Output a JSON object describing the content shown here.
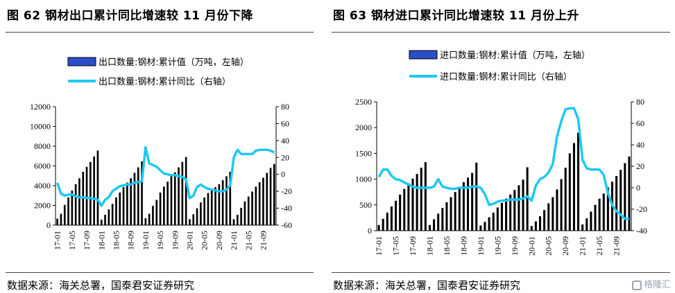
{
  "figures": [
    {
      "title": "图 62  钢材出口累计同比增速较 11 月份下降",
      "source": "数据来源：海关总署，国泰君安证券研究"
    },
    {
      "title": "图 63  钢材进口累计同比增速较 11 月份上升",
      "source": "数据来源：海关总署，国泰君安证券研究"
    }
  ],
  "watermark": "格隆汇",
  "colors": {
    "bar": "#000000",
    "line": "#1EC8F0",
    "legend_bar_fill": "#2B4EC8"
  },
  "chart_data": [
    {
      "type": "bar",
      "categories": [
        "17-01",
        "17-02",
        "17-03",
        "17-04",
        "17-05",
        "17-06",
        "17-07",
        "17-08",
        "17-09",
        "17-10",
        "17-11",
        "17-12",
        "18-01",
        "18-02",
        "18-03",
        "18-04",
        "18-05",
        "18-06",
        "18-07",
        "18-08",
        "18-09",
        "18-10",
        "18-11",
        "18-12",
        "19-01",
        "19-02",
        "19-03",
        "19-04",
        "19-05",
        "19-06",
        "19-07",
        "19-08",
        "19-09",
        "19-10",
        "19-11",
        "19-12",
        "20-01",
        "20-02",
        "20-03",
        "20-04",
        "20-05",
        "20-06",
        "20-07",
        "20-08",
        "20-09",
        "20-10",
        "20-11",
        "20-12",
        "21-01",
        "21-02",
        "21-03",
        "21-04",
        "21-05",
        "21-06",
        "21-07",
        "21-08",
        "21-09",
        "21-10",
        "21-11",
        "21-12"
      ],
      "x_tick_labels": [
        "17-01",
        "17-05",
        "17-09",
        "18-01",
        "18-05",
        "18-09",
        "19-01",
        "19-05",
        "19-09",
        "20-01",
        "20-05",
        "20-09",
        "21-01",
        "21-05",
        "21-09"
      ],
      "series": [
        {
          "name": "出口数量:钢材:累计值（万吨，左轴）",
          "type": "bar",
          "axis": "left",
          "values": [
            650,
            1150,
            2050,
            2800,
            3500,
            4150,
            4750,
            5400,
            5900,
            6400,
            6950,
            7550,
            550,
            1050,
            1600,
            2150,
            2800,
            3300,
            3850,
            4300,
            4750,
            5300,
            5850,
            6450,
            700,
            1150,
            1950,
            2550,
            3300,
            3900,
            4400,
            4950,
            5350,
            5850,
            6400,
            6900,
            600,
            1100,
            1700,
            2300,
            2800,
            3250,
            3600,
            3850,
            4150,
            4550,
            4950,
            5400,
            600,
            1050,
            1750,
            2400,
            2900,
            3400,
            3900,
            4350,
            4800,
            5300,
            5800,
            6200
          ]
        },
        {
          "name": "出口数量:钢材:累计同比（右轴）",
          "type": "line",
          "axis": "right",
          "values": [
            -10,
            -23,
            -25,
            -24,
            -24,
            -26,
            -27,
            -27,
            -28,
            -28,
            -29,
            -30,
            -37,
            -30,
            -27,
            -20,
            -17,
            -14,
            -13,
            -12,
            -12,
            -10,
            -9,
            -8,
            32,
            13,
            11,
            9,
            5,
            1,
            0,
            -1,
            -1,
            -2,
            -3,
            -6,
            -28,
            -25,
            -15,
            -12,
            -15,
            -17,
            -18,
            -19,
            -20,
            -20,
            -18,
            -13,
            20,
            29,
            24,
            24,
            24,
            24,
            28,
            29,
            29,
            29,
            28,
            26
          ]
        }
      ],
      "ylim_left": [
        0,
        12000
      ],
      "yticks_left": [
        0,
        2000,
        4000,
        6000,
        8000,
        10000,
        12000
      ],
      "ylim_right": [
        -60,
        80
      ],
      "yticks_right": [
        -60,
        -40,
        -20,
        0,
        20,
        40,
        60,
        80
      ],
      "legend_position": "top"
    },
    {
      "type": "bar",
      "categories": [
        "17-01",
        "17-02",
        "17-03",
        "17-04",
        "17-05",
        "17-06",
        "17-07",
        "17-08",
        "17-09",
        "17-10",
        "17-11",
        "17-12",
        "18-01",
        "18-02",
        "18-03",
        "18-04",
        "18-05",
        "18-06",
        "18-07",
        "18-08",
        "18-09",
        "18-10",
        "18-11",
        "18-12",
        "19-01",
        "19-02",
        "19-03",
        "19-04",
        "19-05",
        "19-06",
        "19-07",
        "19-08",
        "19-09",
        "19-10",
        "19-11",
        "19-12",
        "20-01",
        "20-02",
        "20-03",
        "20-04",
        "20-05",
        "20-06",
        "20-07",
        "20-08",
        "20-09",
        "20-10",
        "20-11",
        "20-12",
        "21-01",
        "21-02",
        "21-03",
        "21-04",
        "21-05",
        "21-06",
        "21-07",
        "21-08",
        "21-09",
        "21-10",
        "21-11",
        "21-12"
      ],
      "x_tick_labels": [
        "17-01",
        "17-05",
        "17-09",
        "18-01",
        "18-05",
        "18-09",
        "19-01",
        "19-05",
        "19-09",
        "20-01",
        "20-05",
        "20-09",
        "21-01",
        "21-05",
        "21-09"
      ],
      "series": [
        {
          "name": "进口数量:钢材:累计值（万吨，左轴）",
          "type": "bar",
          "axis": "left",
          "values": [
            110,
            230,
            350,
            470,
            580,
            700,
            810,
            920,
            1010,
            1100,
            1220,
            1330,
            110,
            220,
            330,
            440,
            550,
            650,
            750,
            850,
            940,
            1030,
            1120,
            1320,
            100,
            170,
            260,
            350,
            450,
            540,
            620,
            700,
            790,
            880,
            990,
            1230,
            90,
            180,
            280,
            400,
            530,
            650,
            800,
            1000,
            1220,
            1500,
            1700,
            1900,
            120,
            240,
            370,
            500,
            620,
            720,
            840,
            950,
            1060,
            1180,
            1310,
            1440
          ]
        },
        {
          "name": "进口数量:钢材:累计同比（右轴）",
          "type": "line",
          "axis": "right",
          "values": [
            10,
            17,
            17,
            11,
            8,
            7,
            5,
            3,
            1,
            0,
            0,
            0,
            0,
            1,
            8,
            1,
            0,
            -1,
            -1,
            0,
            0,
            0,
            1,
            1,
            0,
            -6,
            -16,
            -15,
            -13,
            -12,
            -12,
            -11,
            -11,
            -11,
            -10,
            -8,
            -12,
            2,
            8,
            10,
            14,
            22,
            48,
            62,
            73,
            74,
            74,
            64,
            26,
            18,
            17,
            17,
            17,
            12,
            -5,
            -16,
            -22,
            -25,
            -29,
            -29
          ]
        }
      ],
      "ylim_left": [
        0,
        2500
      ],
      "yticks_left": [
        0,
        500,
        1000,
        1500,
        2000,
        2500
      ],
      "ylim_right": [
        -40,
        80
      ],
      "yticks_right": [
        -40,
        -20,
        0,
        20,
        40,
        60,
        80
      ],
      "legend_position": "top"
    }
  ]
}
